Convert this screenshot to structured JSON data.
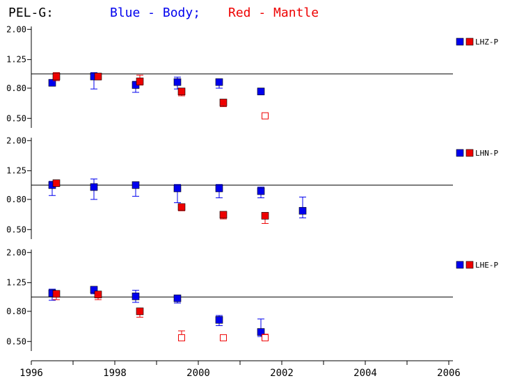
{
  "title": {
    "station": "PEL-G:",
    "blue_label": "Blue - Body;",
    "red_label": "Red - Mantle"
  },
  "colors": {
    "blue": "#0000ee",
    "red": "#ee0000",
    "axis": "#000000"
  },
  "chart_data": {
    "type": "scatter",
    "x_ticks": [
      "1996",
      "1998",
      "2000",
      "2002",
      "2004",
      "2006"
    ],
    "xlim": [
      1996,
      2006
    ],
    "y_scale": "log",
    "y_ticks": [
      "0.50",
      "0.80",
      "1.25",
      "2.00"
    ],
    "ylim": [
      0.45,
      2.05
    ],
    "reference_line": 1.0,
    "panels": [
      {
        "channel": "LHZ-P",
        "blue": [
          {
            "x": 1996.5,
            "y": 0.87,
            "lo": 0.83,
            "hi": 0.91,
            "filled": true
          },
          {
            "x": 1997.5,
            "y": 0.96,
            "lo": 0.79,
            "hi": 1.02,
            "filled": true
          },
          {
            "x": 1998.5,
            "y": 0.84,
            "lo": 0.75,
            "hi": 0.89,
            "filled": true
          },
          {
            "x": 1999.5,
            "y": 0.88,
            "lo": 0.79,
            "hi": 0.95,
            "filled": true
          },
          {
            "x": 2000.5,
            "y": 0.88,
            "lo": 0.8,
            "hi": 0.91,
            "filled": true
          },
          {
            "x": 2001.5,
            "y": 0.76,
            "lo": 0.74,
            "hi": 0.8,
            "filled": true
          }
        ],
        "red": [
          {
            "x": 1996.6,
            "y": 0.96,
            "lo": 0.9,
            "hi": 1.02,
            "filled": true
          },
          {
            "x": 1997.6,
            "y": 0.96,
            "lo": 0.91,
            "hi": 1.0,
            "filled": true
          },
          {
            "x": 1998.6,
            "y": 0.89,
            "lo": 0.84,
            "hi": 0.98,
            "filled": true
          },
          {
            "x": 1999.6,
            "y": 0.76,
            "lo": 0.71,
            "hi": 0.8,
            "filled": true
          },
          {
            "x": 2000.6,
            "y": 0.64,
            "lo": 0.6,
            "hi": 0.66,
            "filled": true
          },
          {
            "x": 2001.6,
            "y": 0.52,
            "lo": null,
            "hi": null,
            "filled": false
          }
        ]
      },
      {
        "channel": "LHN-P",
        "blue": [
          {
            "x": 1996.5,
            "y": 1.0,
            "lo": 0.85,
            "hi": 1.06,
            "filled": true
          },
          {
            "x": 1997.5,
            "y": 0.97,
            "lo": 0.8,
            "hi": 1.1,
            "filled": true
          },
          {
            "x": 1998.5,
            "y": 1.0,
            "lo": 0.84,
            "hi": 1.04,
            "filled": true
          },
          {
            "x": 1999.5,
            "y": 0.95,
            "lo": 0.76,
            "hi": 1.01,
            "filled": true
          },
          {
            "x": 2000.5,
            "y": 0.95,
            "lo": 0.82,
            "hi": 1.01,
            "filled": true
          },
          {
            "x": 2001.5,
            "y": 0.91,
            "lo": 0.82,
            "hi": 0.97,
            "filled": true
          },
          {
            "x": 2002.5,
            "y": 0.67,
            "lo": 0.6,
            "hi": 0.83,
            "filled": true
          }
        ],
        "red": [
          {
            "x": 1996.6,
            "y": 1.03,
            "lo": 0.99,
            "hi": 1.07,
            "filled": true
          },
          {
            "x": 1997.6,
            "y": null,
            "lo": null,
            "hi": null,
            "filled": false
          },
          {
            "x": 1999.6,
            "y": 0.71,
            "lo": 0.67,
            "hi": 0.73,
            "filled": true
          },
          {
            "x": 2000.6,
            "y": 0.63,
            "lo": 0.59,
            "hi": 0.65,
            "filled": true
          },
          {
            "x": 2001.6,
            "y": 0.62,
            "lo": 0.55,
            "hi": 0.64,
            "filled": true
          }
        ]
      },
      {
        "channel": "LHE-P",
        "blue": [
          {
            "x": 1996.5,
            "y": 1.06,
            "lo": 0.95,
            "hi": 1.13,
            "filled": true
          },
          {
            "x": 1997.5,
            "y": 1.12,
            "lo": 1.05,
            "hi": 1.14,
            "filled": true
          },
          {
            "x": 1998.5,
            "y": 1.01,
            "lo": 0.92,
            "hi": 1.11,
            "filled": true
          },
          {
            "x": 1999.5,
            "y": 0.98,
            "lo": 0.91,
            "hi": 1.01,
            "filled": true
          },
          {
            "x": 2000.5,
            "y": 0.7,
            "lo": 0.64,
            "hi": 0.75,
            "filled": true
          },
          {
            "x": 2001.5,
            "y": 0.58,
            "lo": 0.54,
            "hi": 0.71,
            "filled": true
          }
        ],
        "red": [
          {
            "x": 1996.6,
            "y": 1.05,
            "lo": 0.96,
            "hi": 1.09,
            "filled": true
          },
          {
            "x": 1997.6,
            "y": 1.04,
            "lo": 0.96,
            "hi": 1.06,
            "filled": true
          },
          {
            "x": 1998.6,
            "y": 0.8,
            "lo": 0.73,
            "hi": 0.83,
            "filled": true
          },
          {
            "x": 1999.6,
            "y": 0.53,
            "lo": null,
            "hi": 0.59,
            "filled": false
          },
          {
            "x": 2000.6,
            "y": 0.53,
            "lo": null,
            "hi": null,
            "filled": false
          },
          {
            "x": 2001.6,
            "y": 0.53,
            "lo": null,
            "hi": 0.56,
            "filled": false
          }
        ]
      }
    ]
  }
}
